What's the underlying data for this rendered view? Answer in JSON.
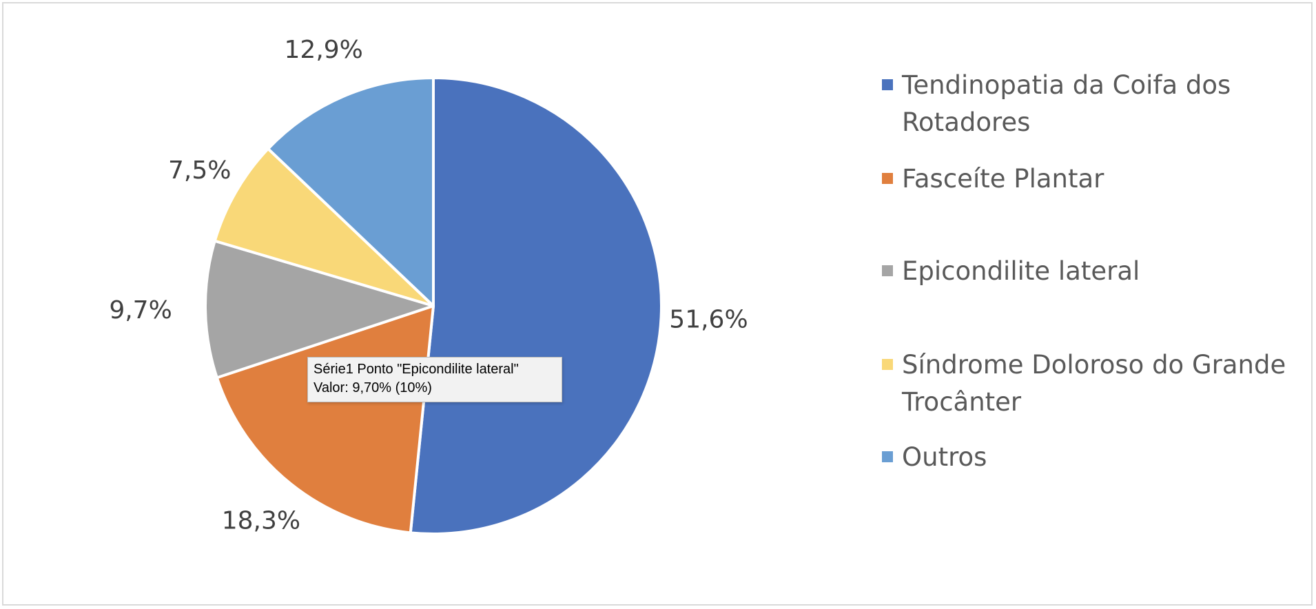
{
  "chart_data": {
    "type": "pie",
    "series_name": "Série1",
    "categories": [
      "Tendinopatia da Coifa dos Rotadores",
      "Fasceíte Plantar",
      "Epicondilite lateral",
      "Síndrome Doloroso do Grande Trocânter",
      "Outros"
    ],
    "legend_lines": [
      [
        "Tendinopatia da Coifa dos",
        "Rotadores"
      ],
      [
        "Fasceíte Plantar"
      ],
      [
        "Epicondilite lateral"
      ],
      [
        "Síndrome Doloroso do Grande",
        "Trocânter"
      ],
      [
        "Outros"
      ]
    ],
    "values": [
      51.6,
      18.3,
      9.7,
      7.5,
      12.9
    ],
    "data_labels": [
      "51,6%",
      "18,3%",
      "9,7%",
      "7,5%",
      "12,9%"
    ],
    "colors": [
      "#4a72bd",
      "#e07f3e",
      "#a5a5a5",
      "#f9d878",
      "#6a9ed3"
    ],
    "legend_position": "right",
    "start_angle": "12 o'clock, clockwise"
  },
  "tooltip": {
    "line1": "Série1 Ponto \"Epicondilite lateral\"",
    "line2": "Valor: 9,70% (10%)"
  }
}
